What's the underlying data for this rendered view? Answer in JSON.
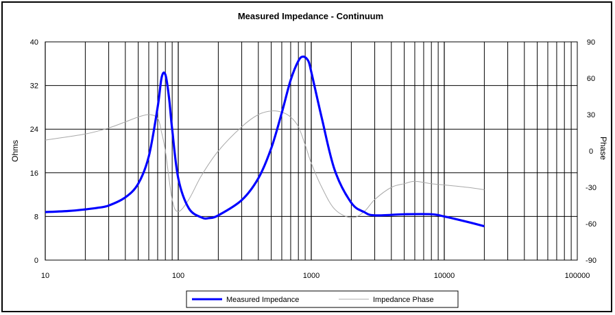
{
  "chart_data": {
    "type": "line",
    "title": "Measured Impedance - Continuum",
    "xlabel": "",
    "ylabel": "Ohms",
    "y2label": "Phase",
    "x_scale": "log",
    "xlim": [
      10,
      100000
    ],
    "ylim": [
      0,
      40
    ],
    "y2lim": [
      -90,
      90
    ],
    "x_ticks": [
      10,
      100,
      1000,
      10000,
      100000
    ],
    "x_tick_labels": [
      "10",
      "100",
      "1000",
      "10000",
      "100000"
    ],
    "y_ticks": [
      0,
      8,
      16,
      24,
      32,
      40
    ],
    "y_tick_labels": [
      "0",
      "8",
      "16",
      "24",
      "32",
      "40"
    ],
    "y2_ticks": [
      -90,
      -60,
      -30,
      0,
      30,
      60,
      90
    ],
    "y2_tick_labels": [
      "-90",
      "-60",
      "-30",
      "0",
      "30",
      "60",
      "90"
    ],
    "grid": true,
    "legend_position": "bottom",
    "series": [
      {
        "name": "Measured Impedance",
        "axis": "left",
        "color": "#0000ff",
        "x": [
          10,
          15,
          20,
          25,
          30,
          40,
          50,
          60,
          70,
          75,
          80,
          85,
          90,
          100,
          120,
          150,
          170,
          200,
          300,
          400,
          500,
          600,
          700,
          800,
          870,
          950,
          1000,
          1200,
          1500,
          2000,
          2500,
          3000,
          5000,
          8000,
          10000,
          15000,
          20000
        ],
        "y": [
          8.8,
          9.0,
          9.3,
          9.6,
          10.0,
          11.5,
          14.0,
          19.0,
          28.0,
          33.5,
          34.0,
          30.0,
          24.0,
          15.0,
          9.5,
          7.8,
          7.7,
          8.2,
          11.0,
          15.0,
          20.5,
          27.0,
          33.0,
          36.5,
          37.3,
          36.5,
          34.5,
          26.0,
          16.5,
          10.5,
          8.8,
          8.2,
          8.4,
          8.4,
          8.0,
          7.0,
          6.2
        ]
      },
      {
        "name": "Impedance Phase",
        "axis": "right",
        "color": "#a8a8a8",
        "x": [
          10,
          20,
          30,
          40,
          50,
          60,
          70,
          75,
          80,
          90,
          100,
          120,
          150,
          200,
          300,
          400,
          500,
          600,
          700,
          800,
          900,
          1000,
          1200,
          1500,
          2000,
          2500,
          3000,
          4000,
          5000,
          6000,
          8000,
          10000,
          15000,
          20000
        ],
        "y": [
          9,
          14,
          19,
          24,
          28,
          30,
          27,
          15,
          0,
          -40,
          -50,
          -40,
          -20,
          0,
          20,
          30,
          33,
          32,
          28,
          20,
          5,
          -10,
          -30,
          -48,
          -55,
          -50,
          -40,
          -30,
          -27,
          -25,
          -27,
          -28,
          -30,
          -32
        ]
      }
    ]
  }
}
